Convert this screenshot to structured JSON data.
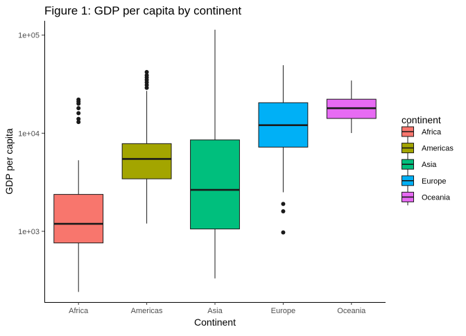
{
  "chart_data": {
    "type": "box",
    "title": "Figure 1: GDP per capita by continent",
    "xlabel": "Continent",
    "ylabel": "GDP per capita",
    "y_scale": "log10",
    "ylim": [
      190,
      140000
    ],
    "y_ticks": [
      {
        "value": 1000,
        "label": "1e+03"
      },
      {
        "value": 10000,
        "label": "1e+04"
      },
      {
        "value": 100000,
        "label": "1e+05"
      }
    ],
    "categories": [
      "Africa",
      "Americas",
      "Asia",
      "Europe",
      "Oceania"
    ],
    "legend": {
      "title": "continent",
      "placement": "right"
    },
    "grid": false,
    "series": [
      {
        "name": "Africa",
        "color": "#F8766D",
        "min": 241,
        "q1": 761,
        "median": 1192,
        "q3": 2378,
        "max": 5300,
        "outliers": [
          13000,
          14000,
          16000,
          18000,
          20000,
          21000,
          22000
        ]
      },
      {
        "name": "Americas",
        "color": "#A3A500",
        "min": 1200,
        "q1": 3428,
        "median": 5466,
        "q3": 7830,
        "max": 27000,
        "outliers": [
          29000,
          31000,
          33000,
          35000,
          37000,
          39000,
          42000
        ]
      },
      {
        "name": "Asia",
        "color": "#00BF7D",
        "min": 331,
        "q1": 1057,
        "median": 2647,
        "q3": 8549,
        "max": 113523,
        "outliers": []
      },
      {
        "name": "Europe",
        "color": "#00B0F6",
        "min": 2500,
        "q1": 7213,
        "median": 12082,
        "q3": 20461,
        "max": 49357,
        "outliers": [
          1900,
          1600,
          974
        ]
      },
      {
        "name": "Oceania",
        "color": "#E76BF3",
        "min": 10040,
        "q1": 14142,
        "median": 17983,
        "q3": 22214,
        "max": 34435,
        "outliers": []
      }
    ]
  }
}
